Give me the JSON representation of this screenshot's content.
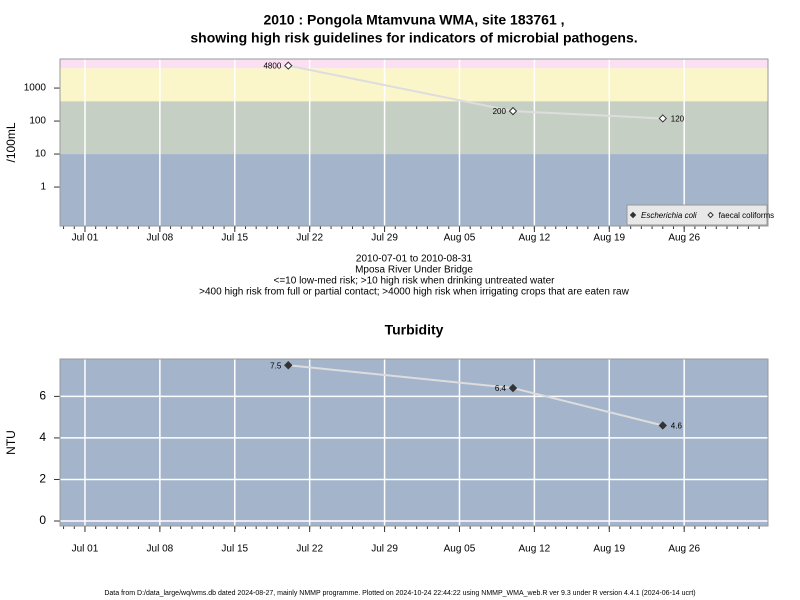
{
  "chart_data": [
    {
      "type": "line",
      "title": [
        "2010 : Pongola Mtamvuna WMA, site 183761 ,",
        "showing high risk guidelines for indicators of microbial pathogens."
      ],
      "ylabel": "/100mL",
      "log_y": true,
      "ylim": [
        0.066,
        7600
      ],
      "yticks": [
        1,
        10,
        100,
        1000
      ],
      "xlim": [
        "2010-06-28T16:00",
        "2010-09-02T20:00"
      ],
      "xticks": [
        {
          "value": "2010-07-01",
          "label": "Jul 01"
        },
        {
          "value": "2010-07-08",
          "label": "Jul 08"
        },
        {
          "value": "2010-07-15",
          "label": "Jul 15"
        },
        {
          "value": "2010-07-22",
          "label": "Jul 22"
        },
        {
          "value": "2010-07-29",
          "label": "Jul 29"
        },
        {
          "value": "2010-08-05",
          "label": "Aug 05"
        },
        {
          "value": "2010-08-12",
          "label": "Aug 12"
        },
        {
          "value": "2010-08-19",
          "label": "Aug 19"
        },
        {
          "value": "2010-08-26",
          "label": "Aug 26"
        }
      ],
      "grid": true,
      "bands": {
        "thresholds": [
          10,
          400,
          4000
        ],
        "colors": [
          "#a3b4cb",
          "#c6cfc3",
          "#fbf6c9",
          "#fbe0f3"
        ]
      },
      "x": [
        "2010-07-20",
        "2010-08-10",
        "2010-08-24"
      ],
      "series": [
        {
          "name": "Escherichia coli",
          "color": "#333333",
          "marker": "diamond",
          "values": [
            null,
            null,
            null
          ]
        },
        {
          "name": "faecal coliforms",
          "color": "#333333",
          "line_color": "#dddddd",
          "marker": "open-diamond",
          "values": [
            4800,
            200,
            120
          ]
        }
      ],
      "legend": "lower right",
      "notes": [
        "2010-07-01 to 2010-08-31",
        "Mposa River Under Bridge",
        "<=10 low-med risk; >10 high risk when drinking untreated water",
        ">400 high risk from full or partial contact; >4000 high risk when irrigating crops that are eaten raw"
      ]
    },
    {
      "type": "line",
      "title": [
        "Turbidity"
      ],
      "ylabel": "NTU",
      "log_y": false,
      "ylim": [
        -0.24,
        7.8
      ],
      "yticks": [
        0,
        2,
        4,
        6
      ],
      "xlim": [
        "2010-06-28T16:00",
        "2010-09-02T20:00"
      ],
      "xticks": [
        {
          "value": "2010-07-01",
          "label": "Jul 01"
        },
        {
          "value": "2010-07-08",
          "label": "Jul 08"
        },
        {
          "value": "2010-07-15",
          "label": "Jul 15"
        },
        {
          "value": "2010-07-22",
          "label": "Jul 22"
        },
        {
          "value": "2010-07-29",
          "label": "Jul 29"
        },
        {
          "value": "2010-08-05",
          "label": "Aug 05"
        },
        {
          "value": "2010-08-12",
          "label": "Aug 12"
        },
        {
          "value": "2010-08-19",
          "label": "Aug 19"
        },
        {
          "value": "2010-08-26",
          "label": "Aug 26"
        }
      ],
      "grid": true,
      "background": "#a3b4cb",
      "x": [
        "2010-07-20",
        "2010-08-10",
        "2010-08-24"
      ],
      "series": [
        {
          "name": "Turbidity",
          "color": "#333333",
          "line_color": "#dddddd",
          "marker": "diamond",
          "values": [
            7.5,
            6.4,
            4.6
          ]
        }
      ]
    }
  ],
  "footer": "Data from D:/data_large/wq/wms.db dated 2024-08-27, mainly NMMP programme. Plotted on 2024-10-24 22:44:22 using NMMP_WMA_web.R ver 9.3 under R version 4.4.1 (2024-06-14 ucrt)"
}
